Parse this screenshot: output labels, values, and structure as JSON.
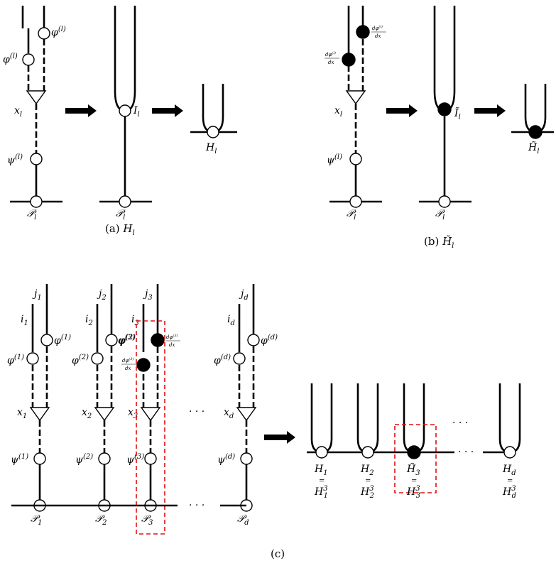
{
  "captions": {
    "a": "(a) H_l",
    "b": "(b) H̃_l",
    "c": "(c)"
  },
  "panel_a": {
    "phi": "φ",
    "phi_sup": "(l)",
    "psi": "ψ",
    "psi_sup": "(l)",
    "x": "x",
    "x_sub": "l",
    "I": "I",
    "I_sub": "l",
    "H": "H",
    "H_sub": "l",
    "P": "𝒫",
    "P_sub": "l"
  },
  "panel_b": {
    "dphi": "dφ",
    "dphi_sup": "(l)",
    "dx": "dx",
    "psi": "ψ",
    "psi_sup": "(l)",
    "x": "x",
    "x_sub": "l",
    "I": "Ĩ",
    "I_sub": "l",
    "H": "H̃",
    "H_sub": "l",
    "P": "𝒫",
    "P_sub": "l"
  },
  "panel_c": {
    "ellipsis": "· · ·",
    "eq_sign": "=",
    "columns": [
      {
        "j": "j",
        "i": "i",
        "sub": "1",
        "phi_sup": "(1)",
        "psi_sup": "(1)",
        "x": "x",
        "P": "𝒫"
      },
      {
        "j": "j",
        "i": "i",
        "sub": "2",
        "phi_sup": "(2)",
        "psi_sup": "(2)",
        "x": "x",
        "P": "𝒫"
      },
      {
        "j": "j",
        "i": "i",
        "sub": "3",
        "phi_sup": "(3)",
        "psi_sup": "(3)",
        "x": "x",
        "P": "𝒫"
      },
      {
        "j": "j",
        "i": "i",
        "sub": "d",
        "phi_sup": "(d)",
        "psi_sup": "(d)",
        "x": "x",
        "P": "𝒫"
      }
    ],
    "outputs": [
      {
        "H": "H",
        "sub": "1",
        "H3": "H",
        "sup": "3"
      },
      {
        "H": "H",
        "sub": "2",
        "H3": "H",
        "sup": "3"
      },
      {
        "H": "H̃",
        "sub": "3",
        "H3": "H",
        "sup": "3"
      },
      {
        "H": "H",
        "sub": "d",
        "H3": "H",
        "sup": "3"
      }
    ]
  }
}
